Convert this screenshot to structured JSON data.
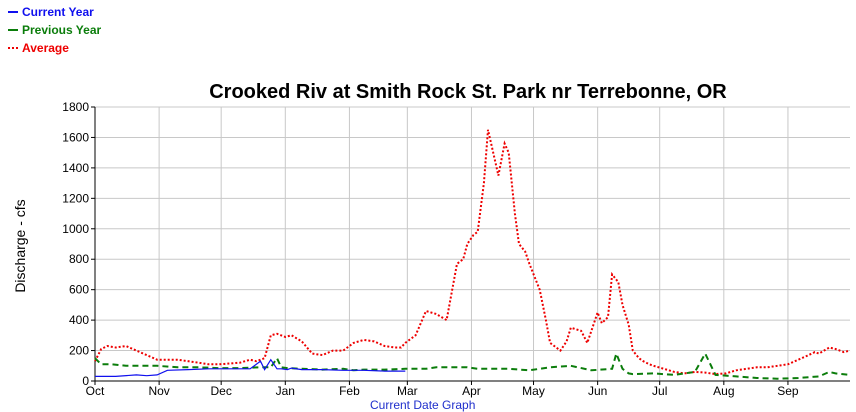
{
  "legend": [
    {
      "label": "Current Year",
      "color": "#1010ee",
      "style": "solid"
    },
    {
      "label": "Previous Year",
      "color": "#0b7d0b",
      "style": "dashed"
    },
    {
      "label": "Average",
      "color": "#ee0000",
      "style": "dotted"
    }
  ],
  "footer_link": "Current Date Graph",
  "chart_data": {
    "type": "line",
    "title": "Crooked Riv at Smith Rock St. Park nr Terrebonne, OR",
    "xlabel": "",
    "ylabel": "Discharge - cfs",
    "x_tick_labels": [
      "Oct",
      "Nov",
      "Dec",
      "Jan",
      "Feb",
      "Mar",
      "Apr",
      "May",
      "Jun",
      "Jul",
      "Aug",
      "Sep"
    ],
    "x_range_days": [
      0,
      365
    ],
    "ylim": [
      0,
      1800
    ],
    "y_ticks": [
      0,
      200,
      400,
      600,
      800,
      1000,
      1200,
      1400,
      1600,
      1800
    ],
    "grid": true,
    "legend_position": "top-left",
    "series": [
      {
        "name": "Current Year",
        "color": "#1010ee",
        "style": "solid",
        "x_days": [
          0,
          10,
          20,
          25,
          30,
          35,
          45,
          55,
          65,
          75,
          80,
          82,
          85,
          88,
          90,
          93,
          95,
          100,
          110,
          120,
          130,
          140,
          150
        ],
        "values": [
          30,
          30,
          40,
          35,
          40,
          70,
          75,
          80,
          80,
          80,
          130,
          75,
          140,
          80,
          80,
          75,
          85,
          75,
          75,
          70,
          70,
          65,
          65
        ]
      },
      {
        "name": "Previous Year",
        "color": "#0b7d0b",
        "style": "dashed",
        "x_days": [
          0,
          3,
          8,
          15,
          20,
          30,
          40,
          50,
          60,
          70,
          80,
          85,
          88,
          90,
          93,
          100,
          110,
          120,
          125,
          130,
          140,
          150,
          160,
          165,
          170,
          180,
          185,
          190,
          195,
          200,
          210,
          220,
          230,
          240,
          250,
          252,
          255,
          258,
          260,
          270,
          280,
          285,
          290,
          295,
          300,
          310,
          320,
          330,
          340,
          350,
          355,
          358,
          365
        ],
        "values": [
          150,
          110,
          110,
          100,
          100,
          100,
          90,
          90,
          85,
          85,
          90,
          90,
          150,
          90,
          85,
          80,
          75,
          80,
          70,
          75,
          75,
          80,
          80,
          90,
          90,
          90,
          80,
          80,
          80,
          80,
          70,
          90,
          100,
          70,
          80,
          180,
          80,
          50,
          45,
          50,
          40,
          50,
          60,
          180,
          40,
          30,
          20,
          15,
          20,
          30,
          60,
          50,
          40
        ]
      },
      {
        "name": "Average",
        "color": "#ee0000",
        "style": "dotted",
        "x_days": [
          0,
          3,
          6,
          10,
          15,
          20,
          25,
          30,
          40,
          50,
          55,
          60,
          70,
          75,
          78,
          82,
          85,
          88,
          92,
          95,
          100,
          105,
          110,
          115,
          120,
          125,
          130,
          135,
          140,
          145,
          148,
          150,
          155,
          160,
          165,
          170,
          175,
          178,
          180,
          183,
          185,
          188,
          190,
          195,
          198,
          200,
          203,
          205,
          208,
          210,
          215,
          218,
          220,
          225,
          228,
          230,
          235,
          238,
          240,
          243,
          245,
          248,
          250,
          253,
          255,
          258,
          260,
          263,
          265,
          268,
          270,
          275,
          280,
          285,
          290,
          295,
          300,
          305,
          310,
          315,
          320,
          325,
          330,
          335,
          340,
          345,
          348,
          350,
          355,
          358,
          362,
          365
        ],
        "values": [
          130,
          210,
          230,
          220,
          230,
          200,
          170,
          140,
          140,
          120,
          110,
          110,
          120,
          140,
          130,
          150,
          300,
          310,
          290,
          300,
          260,
          180,
          170,
          200,
          200,
          250,
          270,
          260,
          230,
          220,
          220,
          250,
          300,
          460,
          440,
          400,
          770,
          800,
          900,
          960,
          980,
          1300,
          1650,
          1350,
          1560,
          1500,
          1100,
          900,
          850,
          770,
          600,
          400,
          250,
          200,
          260,
          350,
          330,
          250,
          330,
          450,
          380,
          420,
          700,
          650,
          500,
          370,
          200,
          150,
          130,
          110,
          100,
          80,
          60,
          50,
          60,
          55,
          45,
          50,
          70,
          80,
          90,
          90,
          100,
          110,
          140,
          170,
          190,
          180,
          220,
          210,
          190,
          200
        ]
      }
    ]
  }
}
